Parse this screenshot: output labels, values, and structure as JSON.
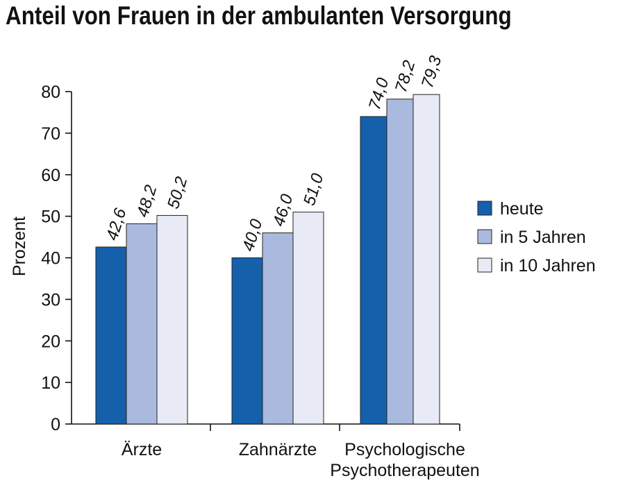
{
  "title": "Anteil von Frauen in der ambulanten Versorgung",
  "chart_data": {
    "type": "bar",
    "title": "Anteil von Frauen in der ambulanten Versorgung",
    "ylabel": "Prozent",
    "xlabel": "",
    "ylim": [
      0,
      80
    ],
    "yticks": [
      "0",
      "10",
      "20",
      "30",
      "40",
      "50",
      "60",
      "70",
      "80"
    ],
    "categories": [
      [
        "Ärzte"
      ],
      [
        "Zahnärzte"
      ],
      [
        "Psychologische",
        "Psychotherapeuten"
      ]
    ],
    "series": [
      {
        "name": "heute",
        "color": "#1560ab",
        "values": [
          42.6,
          40.0,
          74.0
        ],
        "labels": [
          "42,6",
          "40,0",
          "74,0"
        ]
      },
      {
        "name": "in 5 Jahren",
        "color": "#aab9de",
        "values": [
          48.2,
          46.0,
          78.2
        ],
        "labels": [
          "48,2",
          "46,0",
          "78,2"
        ]
      },
      {
        "name": "in 10 Jahren",
        "color": "#e8ebf5",
        "values": [
          50.2,
          51.0,
          79.3
        ],
        "labels": [
          "50,2",
          "51,0",
          "79,3"
        ]
      }
    ],
    "legend_position": "right",
    "grid": false
  }
}
